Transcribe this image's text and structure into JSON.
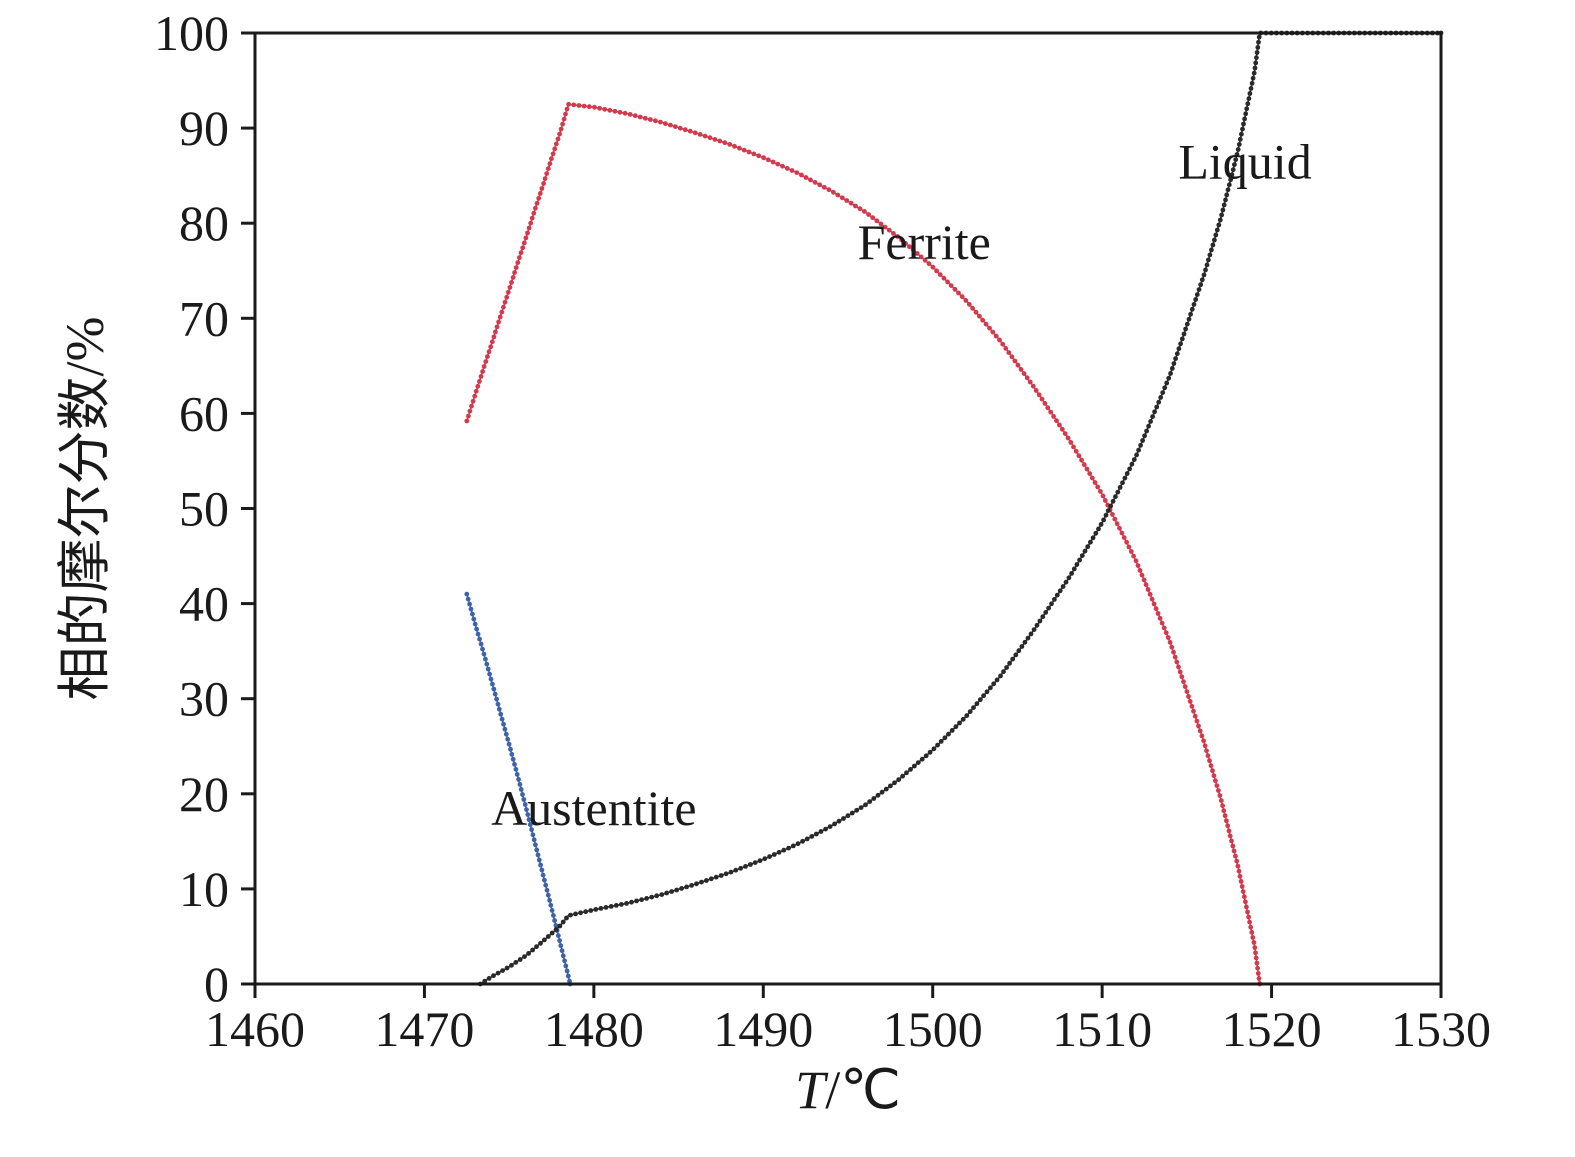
{
  "chart_data": {
    "type": "line",
    "title": "",
    "xlabel_italic": "T",
    "xlabel_unit": "/℃",
    "ylabel": "相的摩尔分数/%",
    "xlim": [
      1460,
      1530
    ],
    "ylim": [
      0,
      100
    ],
    "xticks": [
      1460,
      1470,
      1480,
      1490,
      1500,
      1510,
      1520,
      1530
    ],
    "yticks": [
      0,
      10,
      20,
      30,
      40,
      50,
      60,
      70,
      80,
      90,
      100
    ],
    "grid": false,
    "legend_position": "inline-annotations",
    "frame_color": "#1a1a1a",
    "marker_style": "dense-dots",
    "series": [
      {
        "name": "Ferrite",
        "color": "#d23b4e",
        "points": [
          [
            1472.5,
            59.2
          ],
          [
            1473,
            62
          ],
          [
            1473.5,
            64.8
          ],
          [
            1474,
            67.5
          ],
          [
            1474.5,
            70.3
          ],
          [
            1475,
            73
          ],
          [
            1475.5,
            75.8
          ],
          [
            1476,
            78.5
          ],
          [
            1476.5,
            81.3
          ],
          [
            1477,
            84
          ],
          [
            1477.5,
            86.8
          ],
          [
            1478,
            89.5
          ],
          [
            1478.5,
            92.5
          ],
          [
            1480,
            92.2
          ],
          [
            1482,
            91.5
          ],
          [
            1484,
            90.6
          ],
          [
            1486,
            89.5
          ],
          [
            1488,
            88.3
          ],
          [
            1490,
            86.9
          ],
          [
            1492,
            85.3
          ],
          [
            1494,
            83.4
          ],
          [
            1496,
            81.2
          ],
          [
            1498,
            78.5
          ],
          [
            1500,
            75.4
          ],
          [
            1502,
            71.8
          ],
          [
            1504,
            67.6
          ],
          [
            1506,
            62.7
          ],
          [
            1508,
            57.4
          ],
          [
            1510,
            51.5
          ],
          [
            1512,
            44.5
          ],
          [
            1514,
            36
          ],
          [
            1516,
            25.5
          ],
          [
            1517,
            19.5
          ],
          [
            1518,
            12.5
          ],
          [
            1519,
            4
          ],
          [
            1519.3,
            0
          ]
        ]
      },
      {
        "name": "Austentite",
        "color": "#3f63a8",
        "points": [
          [
            1472.5,
            41
          ],
          [
            1473,
            37.8
          ],
          [
            1473.5,
            34.8
          ],
          [
            1474,
            31.6
          ],
          [
            1474.5,
            28.4
          ],
          [
            1475,
            25.2
          ],
          [
            1475.5,
            21.9
          ],
          [
            1476,
            18.5
          ],
          [
            1476.5,
            15
          ],
          [
            1477,
            11.5
          ],
          [
            1477.5,
            8
          ],
          [
            1478,
            4.4
          ],
          [
            1478.5,
            0.8
          ],
          [
            1478.6,
            0
          ]
        ]
      },
      {
        "name": "Liquid",
        "color": "#2a2a2a",
        "points": [
          [
            1473.3,
            0
          ],
          [
            1474,
            0.8
          ],
          [
            1475,
            1.8
          ],
          [
            1476,
            3
          ],
          [
            1477,
            4.5
          ],
          [
            1478,
            6.1
          ],
          [
            1478.5,
            7.2
          ],
          [
            1480,
            7.8
          ],
          [
            1482,
            8.5
          ],
          [
            1484,
            9.4
          ],
          [
            1486,
            10.5
          ],
          [
            1488,
            11.7
          ],
          [
            1490,
            13.1
          ],
          [
            1492,
            14.7
          ],
          [
            1494,
            16.6
          ],
          [
            1496,
            18.8
          ],
          [
            1498,
            21.5
          ],
          [
            1500,
            24.6
          ],
          [
            1502,
            28.2
          ],
          [
            1504,
            32.4
          ],
          [
            1506,
            37.3
          ],
          [
            1508,
            42.6
          ],
          [
            1510,
            48.5
          ],
          [
            1512,
            55.5
          ],
          [
            1514,
            64
          ],
          [
            1516,
            74.5
          ],
          [
            1517,
            80.5
          ],
          [
            1518,
            87.5
          ],
          [
            1519,
            96
          ],
          [
            1519.3,
            100
          ],
          [
            1530,
            100
          ]
        ]
      }
    ],
    "annotations": [
      {
        "text": "Ferrite",
        "x": 1499.5,
        "y": 78,
        "anchor": "middle"
      },
      {
        "text": "Liquid",
        "x": 1514.5,
        "y": 86.5,
        "anchor": "start"
      },
      {
        "text": "Austentite",
        "x": 1480,
        "y": 18.5,
        "anchor": "middle"
      }
    ]
  }
}
